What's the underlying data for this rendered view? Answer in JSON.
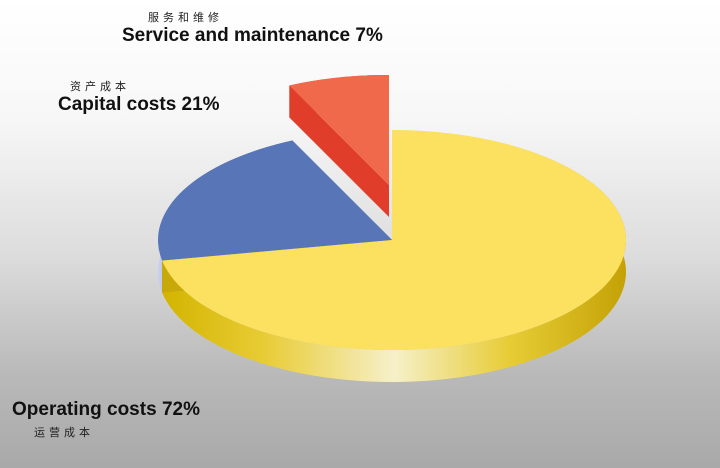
{
  "chart_data": {
    "type": "pie",
    "slices": [
      {
        "label_en": "Operating costs",
        "label_zh": "运营成本",
        "percent_text": "72%",
        "value": 72,
        "top_color": "#fce060",
        "side_color": "#c9a80a",
        "exploded": false
      },
      {
        "label_en": "Capital costs",
        "label_zh": "资产成本",
        "percent_text": "21%",
        "value": 21,
        "top_color": "#5876b7",
        "side_color": "#3a56a1",
        "exploded": false
      },
      {
        "label_en": "Service and maintenance",
        "label_zh": "服务和维修",
        "percent_text": "7%",
        "value": 7,
        "top_color": "#ef694a",
        "side_color": "#e03e2b",
        "exploded": true
      }
    ],
    "style": "3d-pie",
    "legend": "none"
  }
}
